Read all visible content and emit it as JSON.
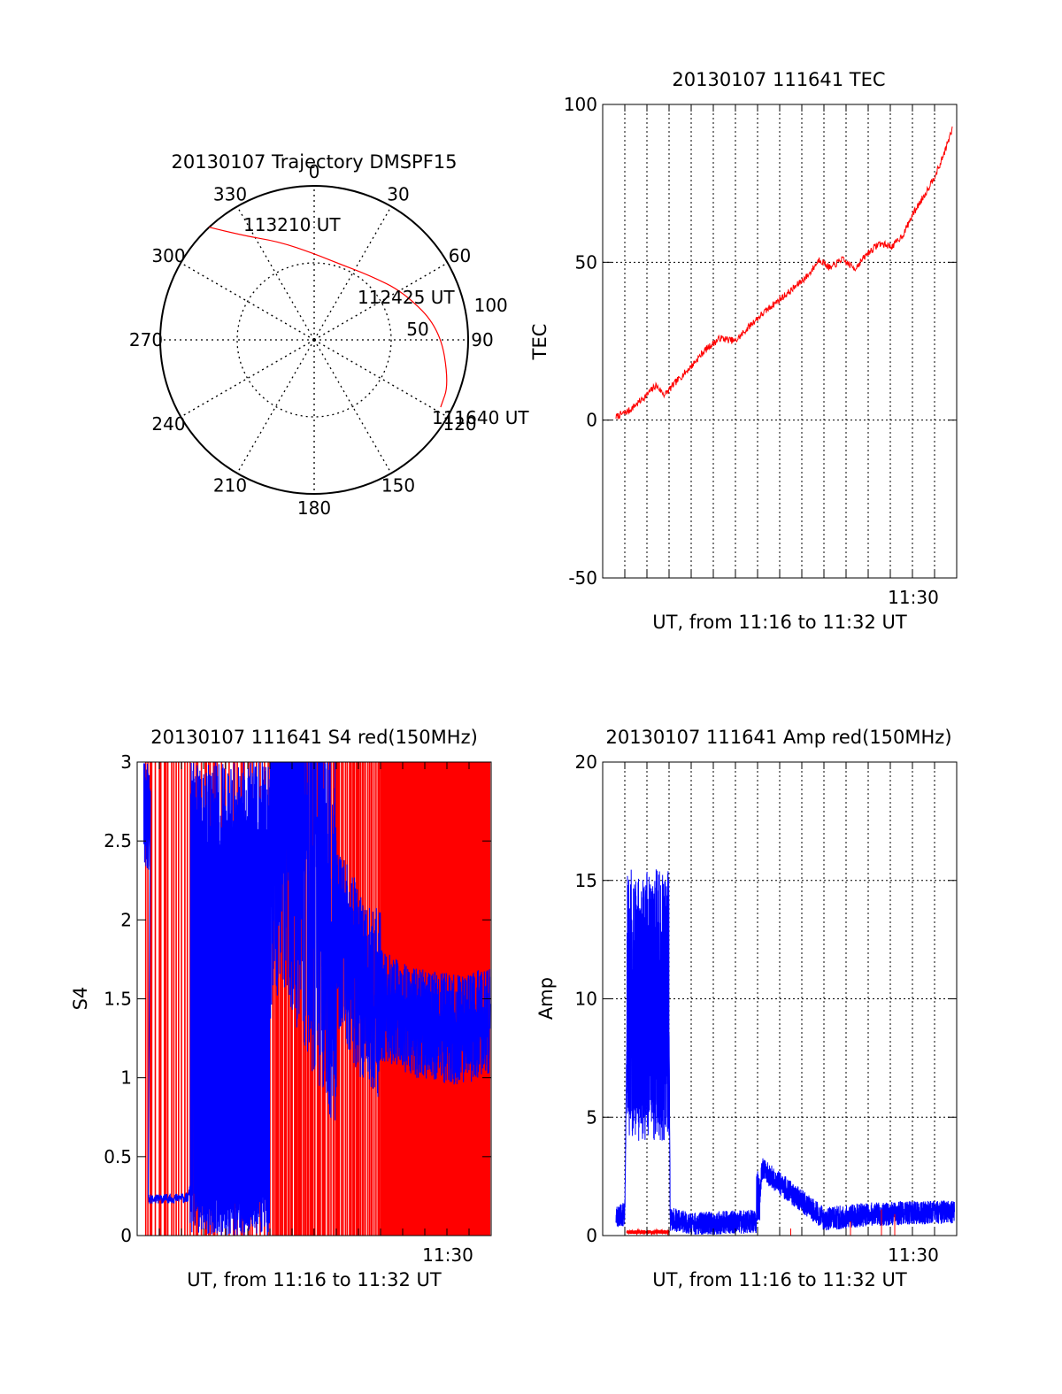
{
  "chart_data": [
    {
      "type": "polar",
      "title": "20130107 Trajectory DMSPF15",
      "angle_ticks": [
        "0",
        "30",
        "60",
        "90",
        "120",
        "150",
        "180",
        "210",
        "240",
        "270",
        "300",
        "330"
      ],
      "radial_ticks": [
        "50",
        "100"
      ],
      "rmax": 100,
      "annotations": [
        "113210 UT",
        "112425 UT",
        "111640 UT"
      ],
      "series": [
        {
          "color": "#ff0000",
          "points": [
            {
              "az": 317,
              "r": 100
            },
            {
              "az": 325,
              "r": 83
            },
            {
              "az": 340,
              "r": 68
            },
            {
              "az": 0,
              "r": 56
            },
            {
              "az": 18,
              "r": 52
            },
            {
              "az": 40,
              "r": 55
            },
            {
              "az": 62,
              "r": 66
            },
            {
              "az": 85,
              "r": 82
            },
            {
              "az": 108,
              "r": 92
            },
            {
              "az": 118,
              "r": 93
            }
          ]
        }
      ]
    },
    {
      "type": "line",
      "title": "20130107 111641 TEC",
      "ylabel": "TEC",
      "xlabel": "UT, from 11:16 to 11:32 UT",
      "xlim": [
        0,
        16
      ],
      "ylim": [
        -50,
        100
      ],
      "yticks": [
        "100",
        "50",
        "0",
        "-50"
      ],
      "xtick_labels": [
        {
          "x": 14,
          "label": "11:30"
        }
      ],
      "grid": true,
      "series": [
        {
          "color": "#ff0000",
          "x": [
            0.6,
            1.2,
            2.0,
            2.4,
            2.8,
            3.3,
            4.0,
            4.6,
            5.3,
            6.0,
            6.8,
            7.6,
            8.5,
            9.3,
            9.8,
            10.3,
            10.8,
            11.4,
            12.0,
            12.5,
            13.1,
            13.6,
            14.0,
            14.6,
            15.2,
            15.8
          ],
          "y": [
            1,
            3,
            8,
            11,
            8,
            12,
            17,
            22,
            26,
            25,
            31,
            36,
            41,
            46,
            51,
            48,
            51,
            48,
            53,
            56,
            55,
            59,
            65,
            72,
            80,
            92
          ]
        }
      ]
    },
    {
      "type": "line",
      "title": "20130107 111641 S4 red(150MHz)",
      "ylabel": "S4",
      "xlabel": "UT, from 11:16 to 11:32 UT",
      "xlim": [
        0,
        16
      ],
      "ylim": [
        0,
        3
      ],
      "yticks": [
        "3",
        "2.5",
        "2",
        "1.5",
        "1",
        "0.5",
        "0"
      ],
      "xtick_labels": [
        {
          "x": 14,
          "label": "11:30"
        }
      ],
      "grid": false,
      "series": [
        {
          "color": "#ff0000",
          "x": [
            0.3,
            15.9
          ],
          "y": [
            0,
            3
          ]
        },
        {
          "color": "#0000ff",
          "x": [
            0.5,
            2.3,
            6.5,
            8.5,
            10.5,
            12.5,
            14.5,
            15.9
          ],
          "y": [
            0.23,
            0.24,
            2.8,
            2.0,
            1.5,
            1.35,
            1.3,
            1.35
          ]
        }
      ]
    },
    {
      "type": "line",
      "title": "20130107 111641 Amp red(150MHz)",
      "ylabel": "Amp",
      "xlabel": "UT, from 11:16 to 11:32 UT",
      "xlim": [
        0,
        16
      ],
      "ylim": [
        0,
        20
      ],
      "yticks": [
        "20",
        "15",
        "10",
        "5",
        "0"
      ],
      "xtick_labels": [
        {
          "x": 14,
          "label": "11:30"
        }
      ],
      "grid": true,
      "series": [
        {
          "color": "#0000ff",
          "x": [
            0.6,
            1.0,
            1.1,
            3.0,
            3.05,
            4.0,
            7.0,
            7.2,
            10.0,
            12.0,
            15.9
          ],
          "y": [
            0.8,
            0.9,
            9.0,
            9.0,
            0.7,
            0.5,
            0.6,
            2.8,
            0.7,
            0.9,
            1.0
          ]
        },
        {
          "color": "#ff0000",
          "x": [
            1.1,
            3.0,
            8.5,
            11.0,
            13.0
          ],
          "y": [
            0.15,
            0.15,
            0.3,
            0.5,
            1.2
          ]
        }
      ]
    }
  ]
}
